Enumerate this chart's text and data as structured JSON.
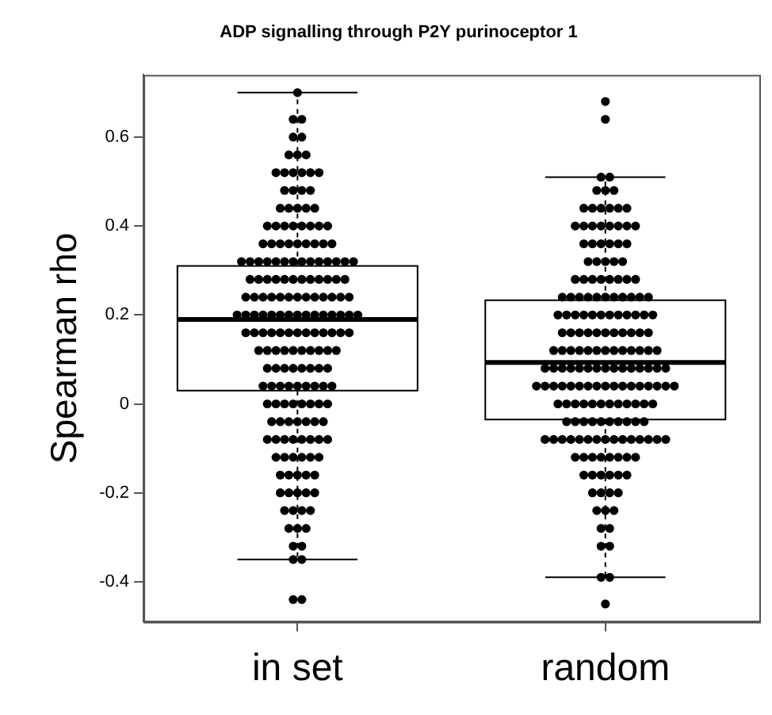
{
  "chart_data": {
    "type": "box",
    "title": "ADP signalling through P2Y purinoceptor 1",
    "ylabel": "Spearman rho",
    "categories": [
      "in set",
      "random"
    ],
    "ylim": [
      -0.49,
      0.74
    ],
    "yticks": [
      -0.4,
      -0.2,
      0.0,
      0.2,
      0.4,
      0.6
    ],
    "grid": false,
    "legend": false,
    "series": [
      {
        "type": "box",
        "color": "#000000",
        "boxes": [
          {
            "low": -0.35,
            "q1": 0.03,
            "median": 0.19,
            "q3": 0.31,
            "high": 0.7
          },
          {
            "low": -0.39,
            "q1": -0.035,
            "median": 0.093,
            "q3": 0.233,
            "high": 0.51
          }
        ]
      },
      {
        "type": "scatter",
        "color": "#000000",
        "marker": "circle",
        "x": [
          "in set",
          "in set",
          "in set",
          "in set",
          "in set",
          "in set",
          "in set",
          "in set",
          "in set",
          "in set",
          "in set",
          "in set",
          "in set",
          "in set",
          "in set",
          "in set",
          "in set",
          "in set",
          "in set",
          "in set",
          "in set",
          "in set",
          "in set",
          "in set",
          "in set",
          "in set",
          "in set",
          "in set",
          "in set",
          "in set",
          "in set",
          "in set",
          "in set",
          "in set",
          "in set",
          "in set",
          "in set",
          "in set",
          "in set",
          "in set",
          "in set",
          "in set",
          "in set",
          "in set",
          "in set",
          "in set",
          "in set",
          "in set",
          "in set",
          "in set",
          "in set",
          "in set",
          "in set",
          "in set",
          "in set",
          "in set",
          "in set",
          "in set",
          "in set",
          "in set",
          "in set",
          "in set",
          "in set",
          "in set",
          "in set",
          "in set",
          "in set",
          "in set",
          "in set",
          "in set",
          "in set",
          "in set",
          "in set",
          "in set",
          "in set",
          "in set",
          "in set",
          "in set",
          "in set",
          "in set",
          "in set",
          "in set",
          "in set",
          "in set",
          "in set",
          "in set",
          "in set",
          "in set",
          "in set",
          "in set",
          "in set",
          "in set",
          "in set",
          "in set",
          "in set",
          "in set",
          "in set",
          "in set",
          "in set",
          "in set",
          "in set",
          "in set",
          "in set",
          "in set",
          "in set",
          "in set",
          "in set",
          "in set",
          "in set",
          "in set",
          "in set",
          "in set",
          "in set",
          "in set",
          "in set",
          "in set",
          "in set",
          "in set",
          "in set",
          "in set",
          "in set",
          "in set",
          "in set",
          "in set",
          "in set",
          "in set",
          "in set",
          "in set",
          "in set",
          "in set",
          "in set",
          "in set",
          "in set",
          "in set",
          "in set",
          "in set",
          "in set",
          "in set",
          "in set",
          "in set",
          "in set",
          "in set",
          "in set",
          "in set",
          "in set",
          "in set",
          "in set",
          "in set",
          "in set",
          "in set",
          "in set",
          "in set",
          "in set",
          "in set",
          "in set",
          "in set",
          "in set",
          "in set",
          "in set",
          "in set",
          "in set",
          "in set",
          "in set",
          "in set",
          "in set",
          "in set",
          "in set",
          "in set",
          "in set",
          "in set",
          "in set",
          "in set",
          "in set",
          "in set",
          "in set",
          "in set",
          "in set",
          "in set",
          "in set",
          "in set",
          "in set",
          "in set",
          "in set",
          "in set",
          "in set",
          "in set"
        ],
        "values": [
          0.7,
          0.64,
          0.64,
          0.6,
          0.6,
          0.56,
          0.56,
          0.56,
          0.52,
          0.52,
          0.52,
          0.52,
          0.52,
          0.52,
          0.48,
          0.48,
          0.48,
          0.48,
          0.44,
          0.44,
          0.44,
          0.44,
          0.44,
          0.4,
          0.4,
          0.4,
          0.4,
          0.4,
          0.4,
          0.4,
          0.4,
          0.36,
          0.36,
          0.36,
          0.36,
          0.36,
          0.36,
          0.36,
          0.36,
          0.36,
          0.32,
          0.32,
          0.32,
          0.32,
          0.32,
          0.32,
          0.32,
          0.32,
          0.32,
          0.32,
          0.32,
          0.32,
          0.32,
          0.32,
          0.28,
          0.28,
          0.28,
          0.28,
          0.28,
          0.28,
          0.28,
          0.28,
          0.28,
          0.28,
          0.28,
          0.28,
          0.24,
          0.24,
          0.24,
          0.24,
          0.24,
          0.24,
          0.24,
          0.24,
          0.24,
          0.24,
          0.24,
          0.24,
          0.24,
          0.2,
          0.2,
          0.2,
          0.2,
          0.2,
          0.2,
          0.2,
          0.2,
          0.2,
          0.2,
          0.2,
          0.2,
          0.2,
          0.2,
          0.2,
          0.16,
          0.16,
          0.16,
          0.16,
          0.16,
          0.16,
          0.16,
          0.16,
          0.16,
          0.16,
          0.16,
          0.16,
          0.16,
          0.12,
          0.12,
          0.12,
          0.12,
          0.12,
          0.12,
          0.12,
          0.12,
          0.12,
          0.12,
          0.08,
          0.08,
          0.08,
          0.08,
          0.08,
          0.08,
          0.08,
          0.08,
          0.04,
          0.04,
          0.04,
          0.04,
          0.04,
          0.04,
          0.04,
          0.04,
          0.04,
          0,
          0,
          0,
          0,
          0,
          0,
          0,
          0,
          -0.04,
          -0.04,
          -0.04,
          -0.04,
          -0.04,
          -0.04,
          -0.04,
          -0.08,
          -0.08,
          -0.08,
          -0.08,
          -0.08,
          -0.08,
          -0.08,
          -0.08,
          -0.12,
          -0.12,
          -0.12,
          -0.12,
          -0.12,
          -0.12,
          -0.16,
          -0.16,
          -0.16,
          -0.16,
          -0.16,
          -0.2,
          -0.2,
          -0.2,
          -0.2,
          -0.2,
          -0.24,
          -0.24,
          -0.24,
          -0.24,
          -0.28,
          -0.28,
          -0.28,
          -0.32,
          -0.32,
          -0.35,
          -0.35,
          -0.44,
          -0.44
        ]
      },
      {
        "type": "scatter",
        "color": "#000000",
        "marker": "circle",
        "x": [
          "random",
          "random",
          "random",
          "random",
          "random",
          "random",
          "random",
          "random",
          "random",
          "random",
          "random",
          "random",
          "random",
          "random",
          "random",
          "random",
          "random",
          "random",
          "random",
          "random",
          "random",
          "random",
          "random",
          "random",
          "random",
          "random",
          "random",
          "random",
          "random",
          "random",
          "random",
          "random",
          "random",
          "random",
          "random",
          "random",
          "random",
          "random",
          "random",
          "random",
          "random",
          "random",
          "random",
          "random",
          "random",
          "random",
          "random",
          "random",
          "random",
          "random",
          "random",
          "random",
          "random",
          "random",
          "random",
          "random",
          "random",
          "random",
          "random",
          "random",
          "random",
          "random",
          "random",
          "random",
          "random",
          "random",
          "random",
          "random",
          "random",
          "random",
          "random",
          "random",
          "random",
          "random",
          "random",
          "random",
          "random",
          "random",
          "random",
          "random",
          "random",
          "random",
          "random",
          "random",
          "random",
          "random",
          "random",
          "random",
          "random",
          "random",
          "random",
          "random",
          "random",
          "random",
          "random",
          "random",
          "random",
          "random",
          "random",
          "random",
          "random",
          "random",
          "random",
          "random",
          "random",
          "random",
          "random",
          "random",
          "random",
          "random",
          "random",
          "random",
          "random",
          "random",
          "random",
          "random",
          "random",
          "random",
          "random",
          "random",
          "random",
          "random",
          "random",
          "random",
          "random",
          "random",
          "random",
          "random",
          "random",
          "random",
          "random",
          "random",
          "random",
          "random",
          "random",
          "random",
          "random",
          "random",
          "random",
          "random",
          "random",
          "random",
          "random",
          "random",
          "random",
          "random",
          "random",
          "random",
          "random",
          "random",
          "random",
          "random",
          "random",
          "random",
          "random",
          "random",
          "random",
          "random",
          "random",
          "random",
          "random",
          "random",
          "random",
          "random",
          "random",
          "random",
          "random",
          "random",
          "random",
          "random",
          "random",
          "random",
          "random",
          "random",
          "random",
          "random",
          "random",
          "random",
          "random",
          "random",
          "random",
          "random",
          "random",
          "random"
        ],
        "values": [
          0.68,
          0.64,
          0.51,
          0.51,
          0.48,
          0.48,
          0.48,
          0.44,
          0.44,
          0.44,
          0.44,
          0.44,
          0.44,
          0.4,
          0.4,
          0.4,
          0.4,
          0.4,
          0.4,
          0.4,
          0.4,
          0.36,
          0.36,
          0.36,
          0.36,
          0.36,
          0.36,
          0.32,
          0.32,
          0.32,
          0.32,
          0.32,
          0.28,
          0.28,
          0.28,
          0.28,
          0.28,
          0.28,
          0.28,
          0.28,
          0.24,
          0.24,
          0.24,
          0.24,
          0.24,
          0.24,
          0.24,
          0.24,
          0.24,
          0.24,
          0.24,
          0.2,
          0.2,
          0.2,
          0.2,
          0.2,
          0.2,
          0.2,
          0.2,
          0.2,
          0.2,
          0.2,
          0.2,
          0.16,
          0.16,
          0.16,
          0.16,
          0.16,
          0.16,
          0.16,
          0.16,
          0.16,
          0.16,
          0.16,
          0.12,
          0.12,
          0.12,
          0.12,
          0.12,
          0.12,
          0.12,
          0.12,
          0.12,
          0.12,
          0.12,
          0.12,
          0.12,
          0.08,
          0.08,
          0.08,
          0.08,
          0.08,
          0.08,
          0.08,
          0.08,
          0.08,
          0.08,
          0.08,
          0.08,
          0.08,
          0.08,
          0.08,
          0.04,
          0.04,
          0.04,
          0.04,
          0.04,
          0.04,
          0.04,
          0.04,
          0.04,
          0.04,
          0.04,
          0.04,
          0.04,
          0.04,
          0.04,
          0.04,
          0.04,
          0,
          0,
          0,
          0,
          0,
          0,
          0,
          0,
          0,
          0,
          0,
          0,
          -0.04,
          -0.04,
          -0.04,
          -0.04,
          -0.04,
          -0.04,
          -0.04,
          -0.04,
          -0.04,
          -0.04,
          -0.08,
          -0.08,
          -0.08,
          -0.08,
          -0.08,
          -0.08,
          -0.08,
          -0.08,
          -0.08,
          -0.08,
          -0.08,
          -0.08,
          -0.08,
          -0.08,
          -0.08,
          -0.12,
          -0.12,
          -0.12,
          -0.12,
          -0.12,
          -0.12,
          -0.12,
          -0.12,
          -0.16,
          -0.16,
          -0.16,
          -0.16,
          -0.16,
          -0.16,
          -0.2,
          -0.2,
          -0.2,
          -0.2,
          -0.24,
          -0.24,
          -0.24,
          -0.28,
          -0.28,
          -0.32,
          -0.32,
          -0.39,
          -0.39,
          -0.45
        ]
      }
    ]
  }
}
